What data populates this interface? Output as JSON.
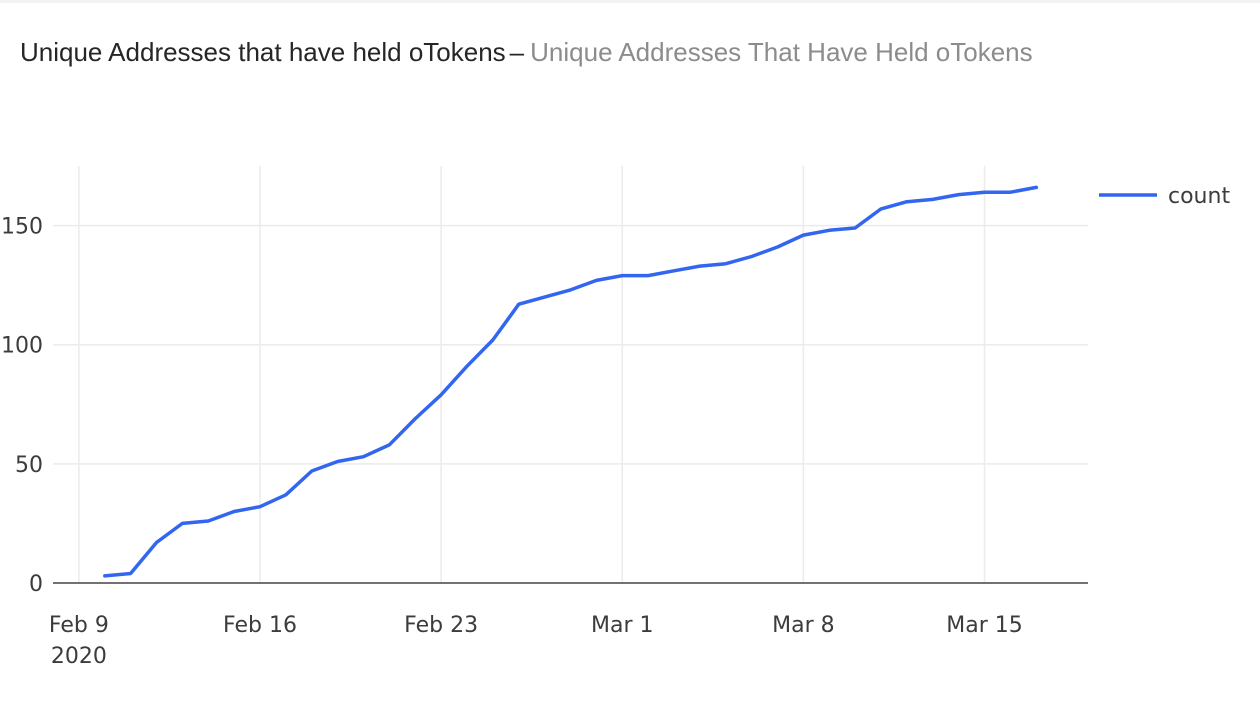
{
  "header": {
    "title": "Unique Addresses that have held oTokens",
    "separator": "–",
    "subtitle": "Unique Addresses That Have Held oTokens"
  },
  "colors": {
    "series": "#3366f0",
    "grid": "#ebebeb",
    "axis": "#444444",
    "text": "#3c3c3c"
  },
  "chart_data": {
    "type": "line",
    "title": "",
    "xlabel": "",
    "ylabel": "",
    "x_axis_type": "date",
    "ylim": [
      0,
      175
    ],
    "xlim": [
      "2020-02-08",
      "2020-03-19"
    ],
    "grid": true,
    "legend_position": "top-right",
    "y_ticks": [
      0,
      50,
      100,
      150
    ],
    "x_ticks": [
      {
        "date": "2020-02-09",
        "label": "Feb 9",
        "sublabel": "2020"
      },
      {
        "date": "2020-02-16",
        "label": "Feb 16",
        "sublabel": ""
      },
      {
        "date": "2020-02-23",
        "label": "Feb 23",
        "sublabel": ""
      },
      {
        "date": "2020-03-01",
        "label": "Mar 1",
        "sublabel": ""
      },
      {
        "date": "2020-03-08",
        "label": "Mar 8",
        "sublabel": ""
      },
      {
        "date": "2020-03-15",
        "label": "Mar 15",
        "sublabel": ""
      }
    ],
    "series": [
      {
        "name": "count",
        "x": [
          "2020-02-10",
          "2020-02-11",
          "2020-02-12",
          "2020-02-13",
          "2020-02-14",
          "2020-02-15",
          "2020-02-16",
          "2020-02-17",
          "2020-02-18",
          "2020-02-19",
          "2020-02-20",
          "2020-02-21",
          "2020-02-22",
          "2020-02-23",
          "2020-02-24",
          "2020-02-25",
          "2020-02-26",
          "2020-02-27",
          "2020-02-28",
          "2020-02-29",
          "2020-03-01",
          "2020-03-02",
          "2020-03-03",
          "2020-03-04",
          "2020-03-05",
          "2020-03-06",
          "2020-03-07",
          "2020-03-08",
          "2020-03-09",
          "2020-03-10",
          "2020-03-11",
          "2020-03-12",
          "2020-03-13",
          "2020-03-14",
          "2020-03-15",
          "2020-03-16",
          "2020-03-17"
        ],
        "values": [
          3,
          4,
          17,
          25,
          26,
          30,
          32,
          37,
          47,
          51,
          53,
          58,
          69,
          79,
          91,
          102,
          117,
          120,
          123,
          127,
          129,
          129,
          131,
          133,
          134,
          137,
          141,
          146,
          148,
          149,
          157,
          160,
          161,
          163,
          164,
          164,
          166
        ]
      }
    ]
  }
}
